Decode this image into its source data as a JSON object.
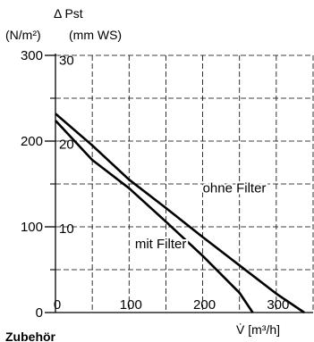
{
  "chart_data": {
    "type": "line",
    "ylabel_symbol": "Δ Pst",
    "ylabel_units_primary": "(N/m²)",
    "ylabel_units_secondary": "(mm WS)",
    "xlabel": "V̇ [m³/h]",
    "xlim": [
      0,
      350
    ],
    "ylim": [
      0,
      300
    ],
    "y_secondary_factor": 9.81,
    "x_ticks": [
      0,
      100,
      200,
      300
    ],
    "y_ticks": [
      0,
      100,
      200,
      300
    ],
    "y_secondary_ticks": [
      10,
      20,
      30
    ],
    "grid": true,
    "series": [
      {
        "name": "ohne Filter",
        "x": [
          0,
          50,
          100,
          150,
          200,
          250,
          300,
          338
        ],
        "y": [
          232,
          195,
          155,
          122,
          88,
          55,
          22,
          0
        ]
      },
      {
        "name": "mit Filter",
        "x": [
          0,
          50,
          100,
          150,
          200,
          250,
          268
        ],
        "y": [
          224,
          178,
          145,
          106,
          66,
          23,
          0
        ]
      }
    ],
    "annotations": [
      {
        "text": "ohne Filter",
        "x": 200,
        "y": 140
      },
      {
        "text": "mit Filter",
        "x": 108,
        "y": 75
      }
    ]
  },
  "footer_heading": "Zubehör"
}
